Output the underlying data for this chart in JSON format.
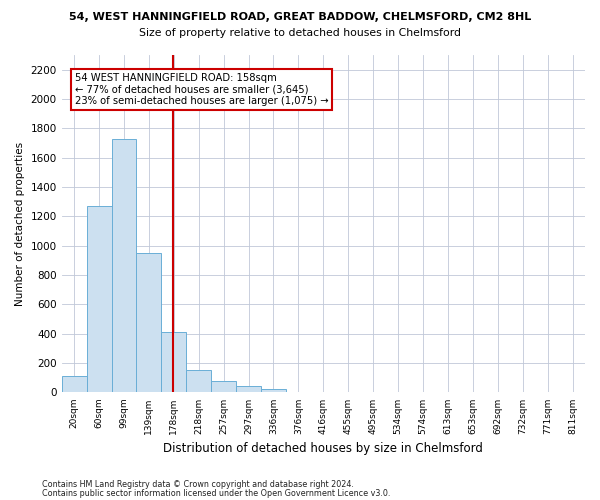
{
  "title1": "54, WEST HANNINGFIELD ROAD, GREAT BADDOW, CHELMSFORD, CM2 8HL",
  "title2": "Size of property relative to detached houses in Chelmsford",
  "xlabel": "Distribution of detached houses by size in Chelmsford",
  "ylabel": "Number of detached properties",
  "bar_labels": [
    "20sqm",
    "60sqm",
    "99sqm",
    "139sqm",
    "178sqm",
    "218sqm",
    "257sqm",
    "297sqm",
    "336sqm",
    "376sqm",
    "416sqm",
    "455sqm",
    "495sqm",
    "534sqm",
    "574sqm",
    "613sqm",
    "653sqm",
    "692sqm",
    "732sqm",
    "771sqm",
    "811sqm"
  ],
  "bar_values": [
    110,
    1270,
    1730,
    950,
    415,
    155,
    80,
    45,
    25,
    0,
    0,
    0,
    0,
    0,
    0,
    0,
    0,
    0,
    0,
    0,
    0
  ],
  "bar_color": "#cce0f0",
  "bar_edgecolor": "#6aaed6",
  "ylim": [
    0,
    2300
  ],
  "yticks": [
    0,
    200,
    400,
    600,
    800,
    1000,
    1200,
    1400,
    1600,
    1800,
    2000,
    2200
  ],
  "vline_x": 3.97,
  "vline_color": "#cc0000",
  "annotation_text": "54 WEST HANNINGFIELD ROAD: 158sqm\n← 77% of detached houses are smaller (3,645)\n23% of semi-detached houses are larger (1,075) →",
  "footer1": "Contains HM Land Registry data © Crown copyright and database right 2024.",
  "footer2": "Contains public sector information licensed under the Open Government Licence v3.0.",
  "bg_color": "#ffffff",
  "plot_bg_color": "#ffffff",
  "grid_color": "#c0c8d8"
}
